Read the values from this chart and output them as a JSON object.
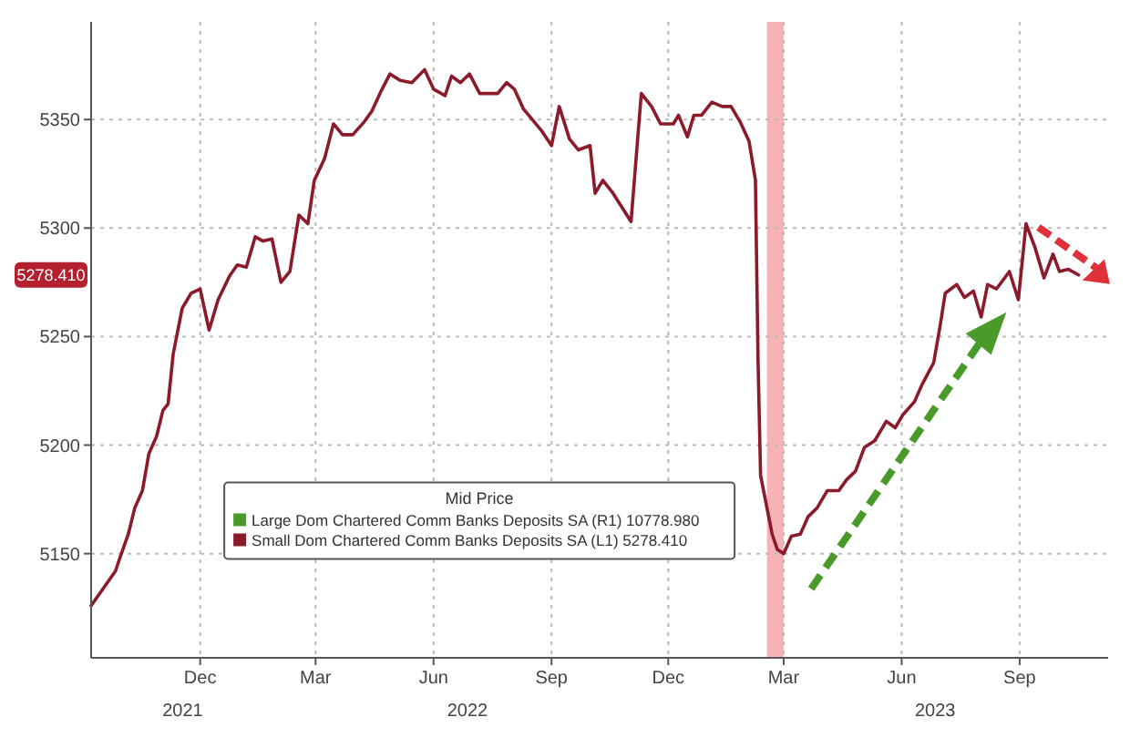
{
  "chart_data": {
    "type": "line",
    "legend_title": "Mid Price",
    "legend": "bottom",
    "grid": true,
    "line_style": "solid",
    "xlim": [
      "2021-09-07",
      "2023-11-09"
    ],
    "ylim": [
      5102,
      5395
    ],
    "yticks": [
      5150,
      5200,
      5250,
      5300,
      5350
    ],
    "xticks": [
      {
        "value": "2021-12-01",
        "label": "Dec"
      },
      {
        "value": "2022-03-01",
        "label": "Mar"
      },
      {
        "value": "2022-06-01",
        "label": "Jun"
      },
      {
        "value": "2022-09-01",
        "label": "Sep"
      },
      {
        "value": "2022-12-01",
        "label": "Dec"
      },
      {
        "value": "2023-03-01",
        "label": "Mar"
      },
      {
        "value": "2023-06-01",
        "label": "Jun"
      },
      {
        "value": "2023-09-01",
        "label": "Sep"
      }
    ],
    "bands": [
      {
        "axis": "x",
        "from": "2023-02-16",
        "to": "2023-03-01",
        "color": "#f4a6aa"
      }
    ],
    "annotations": [
      "5278.410",
      "2021",
      "2022",
      "2023"
    ],
    "series": [
      {
        "name": "Large Dom Chartered Comm Banks Deposits SA (R1) 10778.980",
        "color": "#4a9a2a"
      },
      {
        "name": "Small Dom Chartered Comm Banks Deposits SA (L1) 5278.410",
        "color": "#8b1a2b",
        "x": [
          "2021-09-07",
          "2021-09-26",
          "2021-09-30",
          "2021-10-06",
          "2021-10-11",
          "2021-10-17",
          "2021-10-22",
          "2021-10-28",
          "2021-11-02",
          "2021-11-06",
          "2021-11-10",
          "2021-11-17",
          "2021-11-24",
          "2021-12-01",
          "2021-12-08",
          "2021-12-15",
          "2021-12-24",
          "2021-12-30",
          "2022-01-06",
          "2022-01-13",
          "2022-01-19",
          "2022-01-26",
          "2022-02-02",
          "2022-02-09",
          "2022-02-16",
          "2022-02-23",
          "2022-02-28",
          "2022-03-08",
          "2022-03-15",
          "2022-03-22",
          "2022-03-30",
          "2022-04-08",
          "2022-04-14",
          "2022-04-21",
          "2022-04-28",
          "2022-05-06",
          "2022-05-15",
          "2022-05-25",
          "2022-06-01",
          "2022-06-10",
          "2022-06-15",
          "2022-06-22",
          "2022-06-29",
          "2022-07-07",
          "2022-07-21",
          "2022-07-28",
          "2022-08-03",
          "2022-08-10",
          "2022-08-24",
          "2022-09-01",
          "2022-09-07",
          "2022-09-15",
          "2022-09-22",
          "2022-10-01",
          "2022-10-05",
          "2022-10-11",
          "2022-10-19",
          "2022-11-02",
          "2022-11-10",
          "2022-11-18",
          "2022-11-25",
          "2022-12-05",
          "2022-12-09",
          "2022-12-16",
          "2022-12-21",
          "2022-12-27",
          "2023-01-04",
          "2023-01-12",
          "2023-01-19",
          "2023-01-26",
          "2023-02-02",
          "2023-02-07",
          "2023-02-09",
          "2023-02-11",
          "2023-02-20",
          "2023-02-24",
          "2023-03-01",
          "2023-03-07",
          "2023-03-14",
          "2023-03-20",
          "2023-03-27",
          "2023-04-04",
          "2023-04-13",
          "2023-04-19",
          "2023-04-26",
          "2023-05-03",
          "2023-05-11",
          "2023-05-20",
          "2023-05-27",
          "2023-06-02",
          "2023-06-11",
          "2023-06-17",
          "2023-06-26",
          "2023-07-01",
          "2023-07-05",
          "2023-07-14",
          "2023-07-20",
          "2023-07-27",
          "2023-08-02",
          "2023-08-07",
          "2023-08-14",
          "2023-08-24",
          "2023-08-31",
          "2023-09-06",
          "2023-09-13",
          "2023-09-20",
          "2023-09-27",
          "2023-10-02",
          "2023-10-09",
          "2023-10-17"
        ],
        "values": [
          5126,
          5142,
          5149,
          5159,
          5171,
          5179,
          5196,
          5204,
          5216,
          5219,
          5242,
          5263,
          5270,
          5272,
          5253,
          5267,
          5278,
          5283,
          5282,
          5296,
          5294,
          5295,
          5275,
          5280,
          5306,
          5302,
          5322,
          5332,
          5348,
          5343,
          5343,
          5349,
          5354,
          5363,
          5371,
          5368,
          5367,
          5373,
          5364,
          5361,
          5370,
          5367,
          5371,
          5362,
          5362,
          5367,
          5364,
          5355,
          5345,
          5338,
          5356,
          5341,
          5336,
          5338,
          5316,
          5322,
          5316,
          5303,
          5362,
          5356,
          5348,
          5348,
          5352,
          5342,
          5352,
          5352,
          5358,
          5356,
          5356,
          5349,
          5340,
          5322,
          5240,
          5186,
          5159,
          5152,
          5150,
          5158,
          5159,
          5167,
          5171,
          5179,
          5179,
          5184,
          5188,
          5199,
          5202,
          5211,
          5208,
          5214,
          5220,
          5228,
          5238,
          5255,
          5270,
          5274,
          5268,
          5271,
          5259,
          5274,
          5272,
          5280,
          5267,
          5302,
          5291,
          5277,
          5288,
          5280,
          5281,
          5278.41
        ]
      }
    ]
  }
}
